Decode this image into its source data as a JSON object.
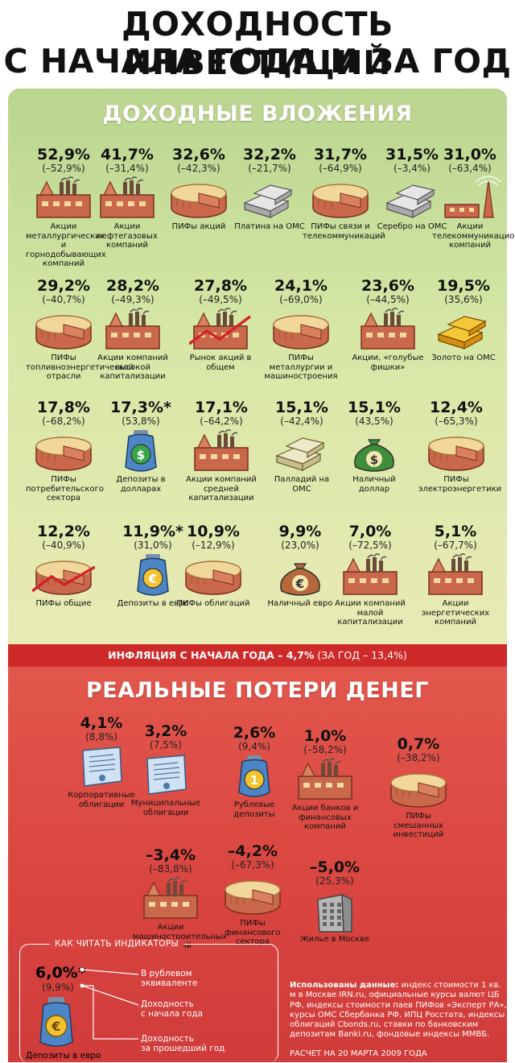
{
  "title_line1": "ДОХОДНОСТЬ ИНВЕСТИЦИЙ",
  "title_line2": "С НАЧАЛА ГОДА И ЗА ГОД",
  "green_section_title": "ДОХОДНЫЕ ВЛОЖЕНИЯ",
  "red_section_title": "РЕАЛЬНЫЕ ПОТЕРИ ДЕНЕГ",
  "inflation": {
    "bold": "ИНФЛЯЦИЯ С НАЧАЛА ГОДА – 4,7%",
    "rest": " (ЗА ГОД – 13,4%)"
  },
  "colors": {
    "green_bg": "#c7de98",
    "red_bg": "#d9443f",
    "accent_red": "#cf2a2a"
  },
  "chart_data": {
    "type": "table",
    "columns": [
      "С начала года",
      "За год"
    ],
    "gainers": [
      {
        "label": "Акции металлургических и горнодобывающих компаний",
        "ytd": "52,9%",
        "yoy": "(–52,9%)",
        "icon": "factory-icon"
      },
      {
        "label": "Акции нефтегазовых компаний",
        "ytd": "41,7%",
        "yoy": "(–31,4%)",
        "icon": "factory-icon"
      },
      {
        "label": "ПИФы акций",
        "ytd": "32,6%",
        "yoy": "(–42,3%)",
        "icon": "pie-icon"
      },
      {
        "label": "Платина на ОМС",
        "ytd": "32,2%",
        "yoy": "(–21,7%)",
        "icon": "platinum-bars-icon"
      },
      {
        "label": "ПИФы связи и телекоммуникаций",
        "ytd": "31,7%",
        "yoy": "(–64,9%)",
        "icon": "pie-icon"
      },
      {
        "label": "Серебро на ОМС",
        "ytd": "31,5%",
        "yoy": "(–3,4%)",
        "icon": "silver-bars-icon"
      },
      {
        "label": "Акции телекоммуникационных компаний",
        "ytd": "31,0%",
        "yoy": "(–63,4%)",
        "icon": "tower-icon"
      },
      {
        "label": "ПИФы топливноэнергетической отрасли",
        "ytd": "29,2%",
        "yoy": "(–40,7%)",
        "icon": "pie-icon"
      },
      {
        "label": "Акции компаний высокой капитализации",
        "ytd": "28,2%",
        "yoy": "(–49,3%)",
        "icon": "factory-icon"
      },
      {
        "label": "Рынок акций в общем",
        "ytd": "27,8%",
        "yoy": "(–49,5%)",
        "icon": "factory-chart-icon"
      },
      {
        "label": "ПИФы металлургии и машиностроения",
        "ytd": "24,1%",
        "yoy": "(–69,0%)",
        "icon": "pie-icon"
      },
      {
        "label": "Акции, «голубые фишки»",
        "ytd": "23,6%",
        "yoy": "(–44,5%)",
        "icon": "factory-icon"
      },
      {
        "label": "Золото на ОМС",
        "ytd": "19,5%",
        "yoy": "(35,6%)",
        "icon": "gold-bars-icon"
      },
      {
        "label": "ПИФы потребительского сектора",
        "ytd": "17,8%",
        "yoy": "(–68,2%)",
        "icon": "pie-icon"
      },
      {
        "label": "Депозиты в долларах",
        "ytd": "17,3%*",
        "yoy": "(53,8%)",
        "icon": "dollar-jar-icon"
      },
      {
        "label": "Акции компаний средней капитализации",
        "ytd": "17,1%",
        "yoy": "(–64,2%)",
        "icon": "factory-icon"
      },
      {
        "label": "Палладий на ОМС",
        "ytd": "15,1%",
        "yoy": "(–42,4%)",
        "icon": "palladium-bars-icon"
      },
      {
        "label": "Наличный доллар",
        "ytd": "15,1%",
        "yoy": "(43,5%)",
        "icon": "dollar-bag-icon"
      },
      {
        "label": "ПИФы электроэнергетики",
        "ytd": "12,4%",
        "yoy": "(–65,3%)",
        "icon": "pie-icon"
      },
      {
        "label": "ПИФы общие",
        "ytd": "12,2%",
        "yoy": "(–40,9%)",
        "icon": "pie-chart-icon"
      },
      {
        "label": "Депозиты в евро",
        "ytd": "11,9%*",
        "yoy": "(31,0%)",
        "icon": "euro-jar-icon"
      },
      {
        "label": "ПИФы облигаций",
        "ytd": "10,9%",
        "yoy": "(–12,9%)",
        "icon": "pie-icon"
      },
      {
        "label": "Наличный евро",
        "ytd": "9,9%",
        "yoy": "(23,0%)",
        "icon": "euro-bag-icon"
      },
      {
        "label": "Акции компаний малой капитализации",
        "ytd": "7,0%",
        "yoy": "(–72,5%)",
        "icon": "factory-icon"
      },
      {
        "label": "Акции энергетических компаний",
        "ytd": "5,1%",
        "yoy": "(–67,7%)",
        "icon": "factory-icon"
      }
    ],
    "losers": [
      {
        "label": "Корпоративные облигации",
        "ytd": "4,1%",
        "yoy": "(8,8%)",
        "icon": "bond-certificate-icon"
      },
      {
        "label": "Муниципальные облигации",
        "ytd": "3,2%",
        "yoy": "(7,5%)",
        "icon": "bond-certificate-icon"
      },
      {
        "label": "Рублевые депозиты",
        "ytd": "2,6%",
        "yoy": "(9,4%)",
        "icon": "ruble-jar-icon"
      },
      {
        "label": "Акции банков и финансовых компаний",
        "ytd": "1,0%",
        "yoy": "(–58,2%)",
        "icon": "factory-icon"
      },
      {
        "label": "ПИФы смешанных инвестиций",
        "ytd": "0,7%",
        "yoy": "(–38,2%)",
        "icon": "pie-icon"
      },
      {
        "label": "Акции машиностроительных компаний",
        "ytd": "–3,4%",
        "yoy": "(–83,8%)",
        "icon": "factory-icon"
      },
      {
        "label": "ПИФы финансового сектора",
        "ytd": "–4,2%",
        "yoy": "(–67,3%)",
        "icon": "pie-icon"
      },
      {
        "label": "Жилье в Москве",
        "ytd": "–5,0%",
        "yoy": "(25,3%)",
        "icon": "building-icon"
      }
    ]
  },
  "legend": {
    "title": "КАК ЧИТАТЬ ИНДИКАТОРЫ",
    "example_value": "6,0%*",
    "example_year": "(9,9%)",
    "example_label": "Депозиты в евро",
    "note1a": "В рублевом",
    "note1b": "эквиваленте",
    "note2a": "Доходность",
    "note2b": "с начала года",
    "note3a": "Доходность",
    "note3b": "за прошедший год"
  },
  "sources": {
    "bold": "Использованы данные:",
    "text": " индекс стоимости 1 кв. м в Москве IRN.ru, официальные курсы валют ЦБ РФ, индексы стоимости паев ПИФов «Эксперт РА», курсы ОМС Сбербанка РФ, ИПЦ Росстата, индексы облигаций Cbonds.ru, ставки по банковским депозитам Banki.ru, фондовые индексы ММВБ."
  },
  "calc_date": "РАСЧЕТ НА 20 МАРТА 2009 ГОДА"
}
